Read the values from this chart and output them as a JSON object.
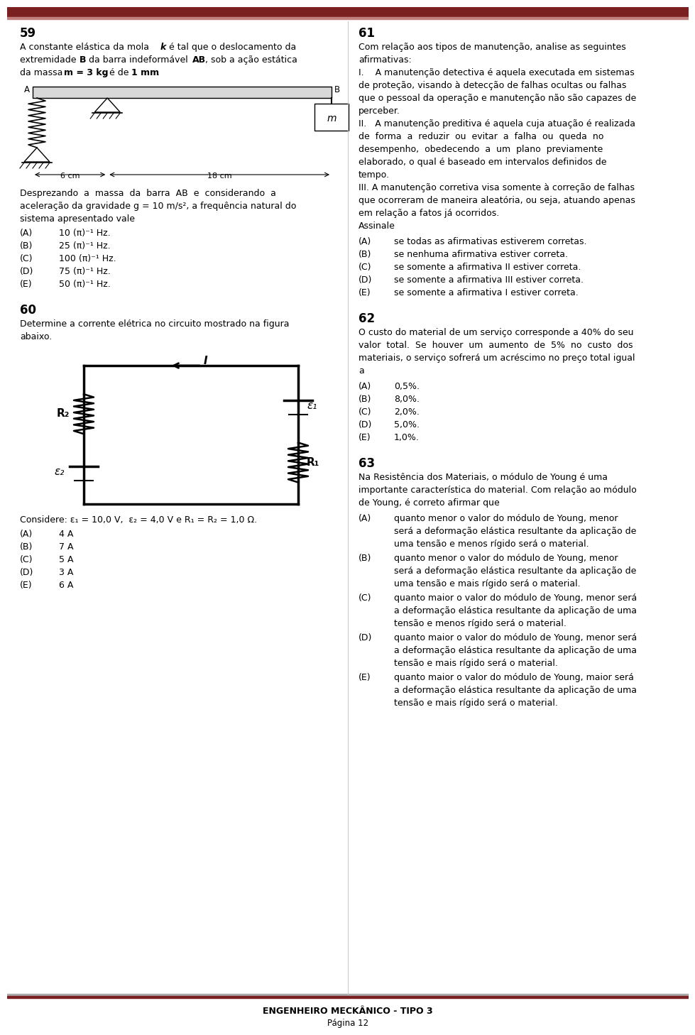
{
  "page_width": 9.6,
  "page_height": 14.32,
  "bg_color": "#ffffff",
  "header_color": "#7b2020",
  "footer_line1": "ENGENHEIRO MECKÂNICO - TIPO 3",
  "footer_line2": "Página 12",
  "q59_number": "59",
  "q59_line1": "A constante elástica da mola ",
  "q59_line1b": "k",
  "q59_line1c": " é tal que o deslocamento da",
  "q59_line2": "extremidade ",
  "q59_line2b": "B",
  "q59_line2c": " da barra indeformável ",
  "q59_line2d": "AB",
  "q59_line2e": ", sob a ação estática",
  "q59_line3": "da massa ",
  "q59_line3b": "m = 3 kg",
  "q59_line3c": ", é de ",
  "q59_line3d": "1 mm",
  "q59_line3e": ".",
  "q59_below1": "Desprezando  a  massa  da  barra  AB  e  considerando  a",
  "q59_below2": "aceleração da gravidade g = 10 m/s², a frequência natural do",
  "q59_below3": "sistema apresentado vale",
  "q59_opts": [
    [
      "(A)",
      "10 (π)⁻¹ Hz."
    ],
    [
      "(B)",
      "25 (π)⁻¹ Hz."
    ],
    [
      "(C)",
      "100 (π)⁻¹ Hz."
    ],
    [
      "(D)",
      "75 (π)⁻¹ Hz."
    ],
    [
      "(E)",
      "50 (π)⁻¹ Hz."
    ]
  ],
  "q60_number": "60",
  "q60_line1": "Determine a corrente elétrica no circuito mostrado na figura",
  "q60_line2": "abaixo.",
  "q60_considere": "Considere: ε₁ = 10,0 V,  ε₂ = 4,0 V e R₁ = R₂ = 1,0 Ω.",
  "q60_opts": [
    [
      "(A)",
      "4 A"
    ],
    [
      "(B)",
      "7 A"
    ],
    [
      "(C)",
      "5 A"
    ],
    [
      "(D)",
      "3 A"
    ],
    [
      "(E)",
      "6 A"
    ]
  ],
  "q61_number": "61",
  "q61_intro1": "Com relação aos tipos de manutenção, analise as seguintes",
  "q61_intro2": "afirmativas:",
  "q61_body": [
    "I.    A manutenção detectiva é aquela executada em sistemas",
    "de proteção, visando à detecção de falhas ocultas ou falhas",
    "que o pessoal da operação e manutenção não são capazes de",
    "perceber.",
    "II.   A manutenção preditiva é aquela cuja atuação é realizada",
    "de  forma  a  reduzir  ou  evitar  a  falha  ou  queda  no",
    "desempenho,  obedecendo  a  um  plano  previamente",
    "elaborado, o qual é baseado em intervalos definidos de",
    "tempo.",
    "III. A manutenção corretiva visa somente à correção de falhas",
    "que ocorreram de maneira aleatória, ou seja, atuando apenas",
    "em relação a fatos já ocorridos.",
    "Assinale"
  ],
  "q61_opts": [
    [
      "(A)",
      "se todas as afirmativas estiverem corretas."
    ],
    [
      "(B)",
      "se nenhuma afirmativa estiver correta."
    ],
    [
      "(C)",
      "se somente a afirmativa II estiver correta."
    ],
    [
      "(D)",
      "se somente a afirmativa III estiver correta."
    ],
    [
      "(E)",
      "se somente a afirmativa I estiver correta."
    ]
  ],
  "q62_number": "62",
  "q62_body": [
    "O custo do material de um serviço corresponde a 40% do seu",
    "valor  total.  Se  houver  um  aumento  de  5%  no  custo  dos",
    "materiais, o serviço sofrerá um acréscimo no preço total igual",
    "a"
  ],
  "q62_opts": [
    [
      "(A)",
      "0,5%."
    ],
    [
      "(B)",
      "8,0%."
    ],
    [
      "(C)",
      "2,0%."
    ],
    [
      "(D)",
      "5,0%."
    ],
    [
      "(E)",
      "1,0%."
    ]
  ],
  "q63_number": "63",
  "q63_body": [
    "Na Resistência dos Materiais, o módulo de Young é uma",
    "importante característica do material. Com relação ao módulo",
    "de Young, é correto afirmar que"
  ],
  "q63_opts": [
    [
      "(A)",
      "quanto menor o valor do módulo de Young, menor\nserá a deformação elástica resultante da aplicação de\numa tensão e menos rígido será o material."
    ],
    [
      "(B)",
      "quanto menor o valor do módulo de Young, menor\nserá a deformação elástica resultante da aplicação de\numa tensão e mais rígido será o material."
    ],
    [
      "(C)",
      "quanto maior o valor do módulo de Young, menor será\na deformação elástica resultante da aplicação de uma\ntensão e menos rígido será o material."
    ],
    [
      "(D)",
      "quanto maior o valor do módulo de Young, menor será\na deformação elástica resultante da aplicação de uma\ntensão e mais rígido será o material."
    ],
    [
      "(E)",
      "quanto maior o valor do módulo de Young, maior será\na deformação elástica resultante da aplicação de uma\ntensão e mais rígido será o material."
    ]
  ]
}
